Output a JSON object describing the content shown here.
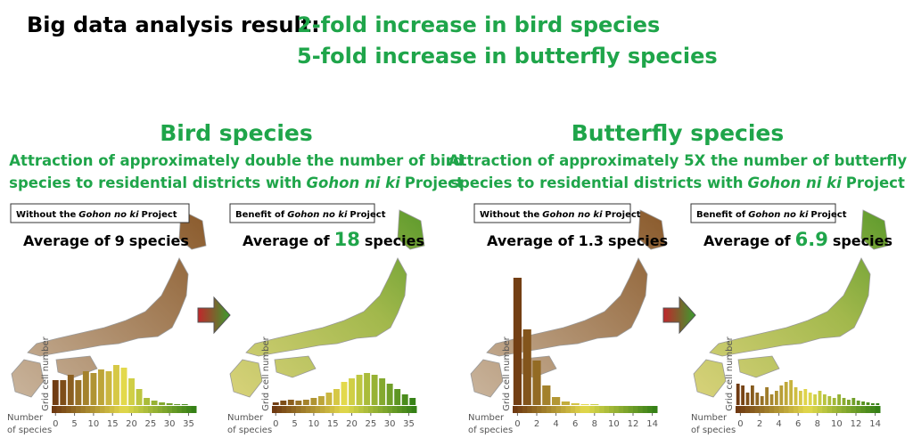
{
  "headline": {
    "label": "Big data analysis result:",
    "lines": [
      "2-fold increase in bird species",
      "5-fold increase in butterfly species"
    ]
  },
  "colors": {
    "accent": "#1fa54a",
    "scale": [
      "#6b3410",
      "#e3d94c",
      "#2f7d14"
    ]
  },
  "panels": [
    {
      "title": "Bird species",
      "subtitle": [
        "Attraction of approximately double the number of bird",
        "species to residential districts with",
        "Gohon ni ki",
        "Project"
      ],
      "boxes": [
        {
          "label": [
            "Without the",
            "Gohon no ki",
            "Project"
          ],
          "average": [
            "Average of",
            9,
            "species"
          ],
          "histogram": {
            "y_label": "Grid cell number",
            "x_label": [
              "Number",
              "of species"
            ],
            "xlim": [
              -1,
              37
            ],
            "xticks": [
              0,
              5,
              10,
              15,
              20,
              25,
              30,
              35
            ],
            "values": [
              28,
              28,
              34,
              28,
              38,
              36,
              40,
              38,
              45,
              42,
              30,
              18,
              8,
              5,
              3,
              2,
              1,
              1,
              0
            ]
          }
        },
        {
          "label": [
            "Benefit of",
            "Gohon no ki",
            "Project"
          ],
          "average": [
            "Average of",
            18,
            "species"
          ],
          "histogram": {
            "y_label": "Grid cell number",
            "x_label": [
              "Number",
              "of species"
            ],
            "xlim": [
              -1,
              37
            ],
            "xticks": [
              0,
              5,
              10,
              15,
              20,
              25,
              30,
              35
            ],
            "values": [
              3,
              5,
              6,
              5,
              6,
              8,
              10,
              14,
              18,
              26,
              30,
              34,
              36,
              34,
              30,
              24,
              18,
              12,
              8
            ]
          }
        }
      ]
    },
    {
      "title": "Butterfly species",
      "subtitle": [
        "Attraction of approximately 5X the number of butterfly",
        "species to residential districts with",
        "Gohon ni ki",
        "Project"
      ],
      "boxes": [
        {
          "label": [
            "Without the",
            "Gohon no ki",
            "Project"
          ],
          "average": [
            "Average of",
            1.3,
            "species"
          ],
          "histogram": {
            "y_label": "Grid cell number",
            "x_label": [
              "Number",
              "of species"
            ],
            "xlim": [
              -0.5,
              14.5
            ],
            "xticks": [
              0,
              2,
              4,
              6,
              8,
              10,
              12,
              14
            ],
            "values": [
              143,
              85,
              50,
              22,
              9,
              4,
              2,
              1,
              1,
              0,
              0,
              0,
              0,
              0,
              0
            ]
          }
        },
        {
          "label": [
            "Benefit of",
            "Gohon no ki",
            "Project"
          ],
          "average": [
            "Average of",
            6.9,
            "species"
          ],
          "histogram": {
            "y_label": "Grid cell number",
            "x_label": [
              "Number",
              "of species"
            ],
            "xlim": [
              -0.5,
              14.5
            ],
            "xticks": [
              0,
              2,
              4,
              6,
              8,
              10,
              12,
              14
            ],
            "values": [
              24,
              22,
              14,
              22,
              14,
              10,
              20,
              12,
              16,
              22,
              26,
              28,
              20,
              16,
              18,
              14,
              12,
              16,
              12,
              10,
              8,
              12,
              8,
              6,
              8,
              5,
              4,
              3,
              2,
              2
            ]
          }
        }
      ]
    }
  ]
}
